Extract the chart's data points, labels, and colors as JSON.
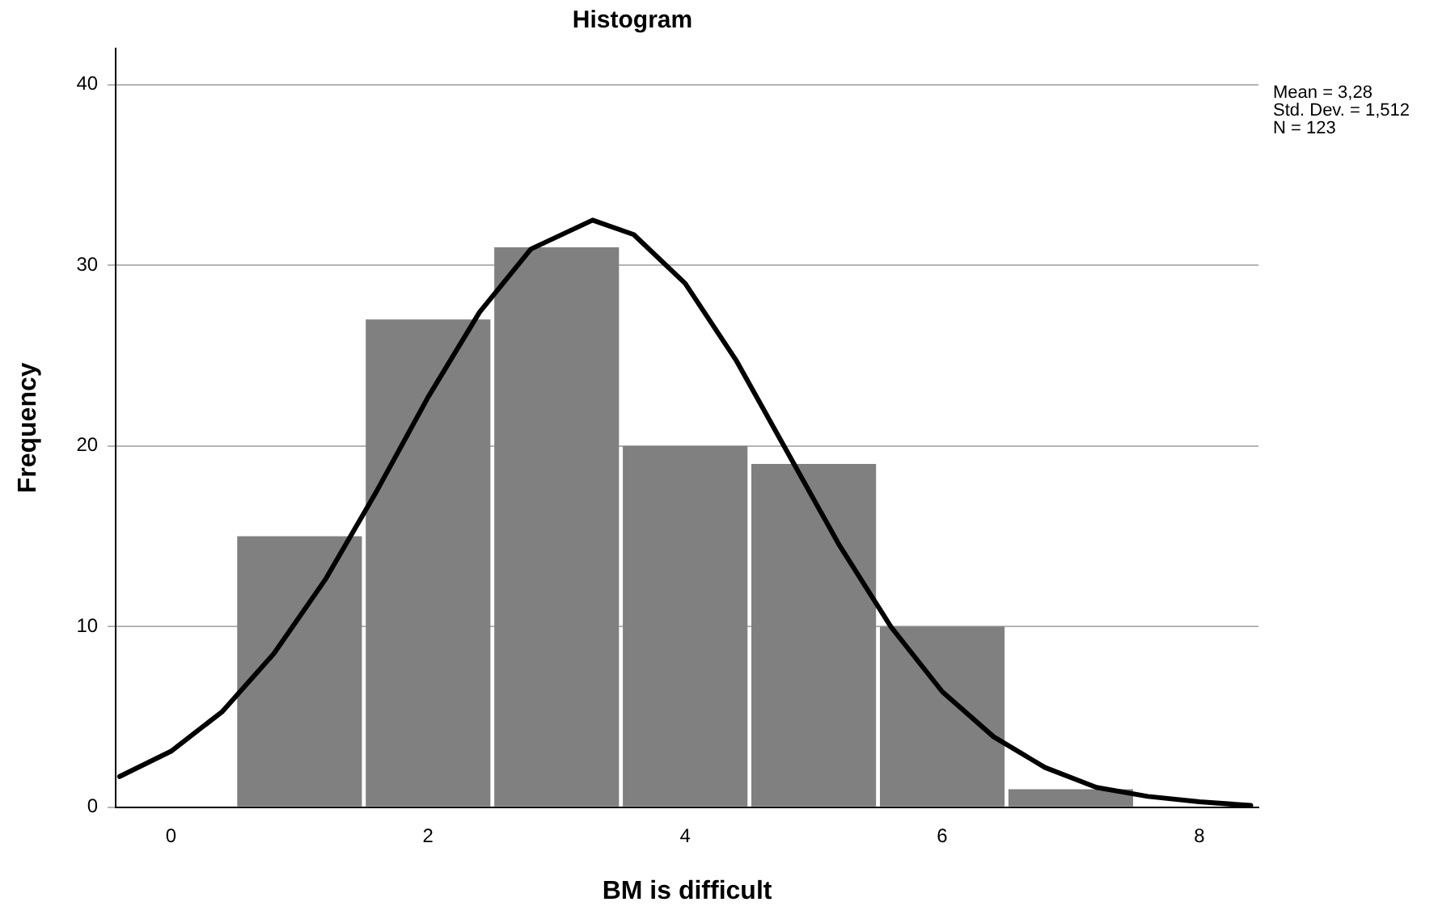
{
  "chart_data": {
    "type": "histogram",
    "title": "Histogram",
    "xlabel": "BM is difficult",
    "ylabel": "Frequency",
    "bins": [
      0.5,
      1.5,
      2.5,
      3.5,
      4.5,
      5.5,
      6.5,
      7.5
    ],
    "values": [
      15,
      27,
      31,
      20,
      19,
      10,
      1
    ],
    "color": "#808080",
    "series": [
      {
        "type": "line",
        "color": "#000000",
        "x": [
          -0.4,
          0,
          0.4,
          0.8,
          1.2,
          1.6,
          2.0,
          2.4,
          2.8,
          3.28,
          3.6,
          4.0,
          4.4,
          4.8,
          5.2,
          5.6,
          6.0,
          6.4,
          6.8,
          7.2,
          7.6,
          8.0,
          8.4
        ],
        "values": [
          1.7,
          3.1,
          5.3,
          8.5,
          12.6,
          17.5,
          22.7,
          27.4,
          30.9,
          32.5,
          31.7,
          29.0,
          24.7,
          19.6,
          14.5,
          10.0,
          6.4,
          3.9,
          2.2,
          1.1,
          0.6,
          0.3,
          0.1
        ]
      }
    ],
    "xlim": [
      -0.43,
      8.46
    ],
    "xticks": [
      0,
      2,
      4,
      6,
      8
    ],
    "ylim": [
      0,
      42
    ],
    "yticks": [
      0,
      10,
      20,
      30,
      40
    ],
    "grid": "y",
    "legend": false,
    "marker": "none",
    "line_style": "solid",
    "annotations": [
      "Mean = 3,28",
      "Std. Dev. = 1,512",
      "N = 123"
    ]
  }
}
